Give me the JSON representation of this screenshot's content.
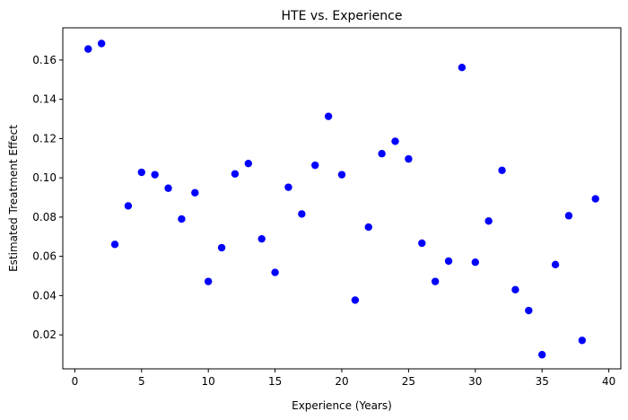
{
  "chart_data": {
    "type": "scatter",
    "title": "HTE vs. Experience",
    "xlabel": "Experience (Years)",
    "ylabel": "Estimated Treatment Effect",
    "xlim": [
      -0.9,
      40.9
    ],
    "ylim": [
      0.0027,
      0.1764
    ],
    "xticks": [
      0,
      5,
      10,
      15,
      20,
      25,
      30,
      35,
      40
    ],
    "yticks": [
      0.02,
      0.04,
      0.06,
      0.08,
      0.1,
      0.12,
      0.14,
      0.16
    ],
    "ytick_labels": [
      "0.02",
      "0.04",
      "0.06",
      "0.08",
      "0.10",
      "0.12",
      "0.14",
      "0.16"
    ],
    "grid": false,
    "marker_color": "#0000ff",
    "series": [
      {
        "x": [
          1,
          2,
          3,
          4,
          5,
          6,
          7,
          8,
          9,
          10,
          11,
          12,
          13,
          14,
          15,
          16,
          17,
          18,
          19,
          20,
          21,
          22,
          23,
          24,
          25,
          26,
          27,
          28,
          29,
          30,
          31,
          32,
          33,
          34,
          35,
          36,
          37,
          38,
          39
        ],
        "y": [
          0.1656,
          0.1684,
          0.0661,
          0.0857,
          0.1028,
          0.1016,
          0.0947,
          0.079,
          0.0924,
          0.0472,
          0.0644,
          0.102,
          0.1073,
          0.0689,
          0.0518,
          0.0952,
          0.0816,
          0.1064,
          0.1313,
          0.1016,
          0.0377,
          0.0749,
          0.1123,
          0.1186,
          0.1096,
          0.0667,
          0.0472,
          0.0576,
          0.1562,
          0.057,
          0.078,
          0.1038,
          0.043,
          0.0324,
          0.0099,
          0.0558,
          0.0807,
          0.0172,
          0.0893
        ]
      }
    ]
  }
}
